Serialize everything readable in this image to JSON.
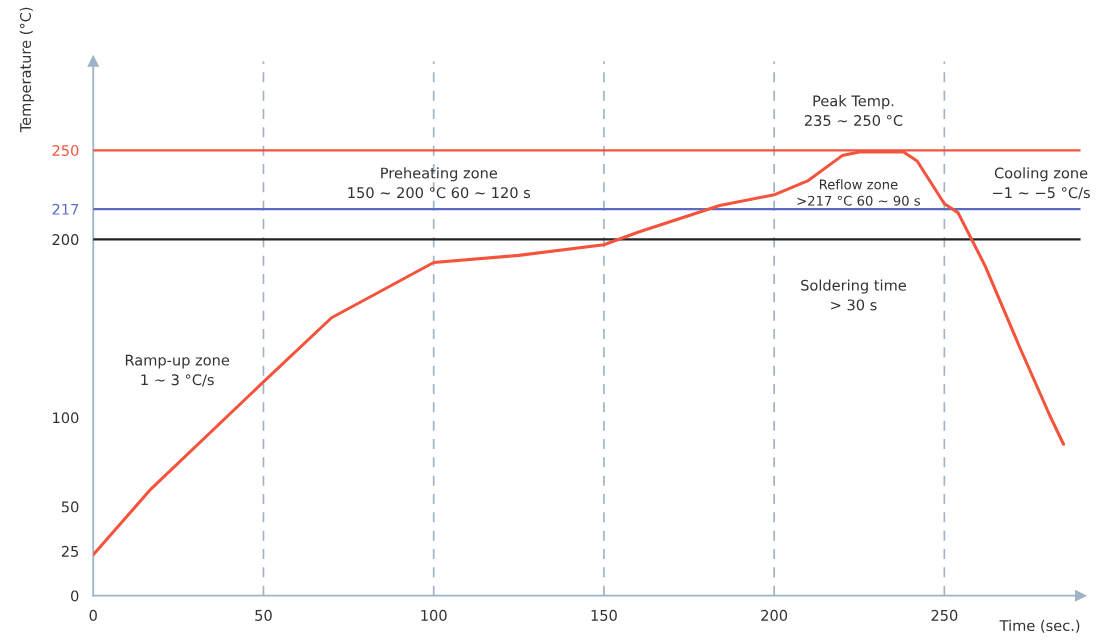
{
  "chart_data": {
    "type": "line",
    "xlabel": "Time (sec.)",
    "ylabel": "Temperature (°C)",
    "series": [
      {
        "color": "#f4533c",
        "x": [
          0,
          17,
          50,
          70,
          100,
          125,
          150,
          160,
          184,
          200,
          210,
          220,
          225,
          238,
          242,
          250,
          254,
          262,
          272,
          281,
          285
        ],
        "values": [
          23,
          60,
          120,
          156,
          187,
          191,
          197,
          204,
          219,
          225,
          233,
          247,
          249,
          249,
          244,
          220,
          215,
          185,
          140,
          101,
          85
        ]
      }
    ],
    "xlim": [
      0,
      290
    ],
    "ylim": [
      0,
      300
    ],
    "xticks": [
      0,
      50,
      100,
      150,
      200,
      250
    ],
    "yticks": [
      0,
      25,
      50,
      100,
      200,
      217,
      250
    ],
    "ref_lines": [
      {
        "axis": "y",
        "value": 250,
        "color": "#f4533c",
        "line_style": "solid"
      },
      {
        "axis": "y",
        "value": 217,
        "color": "#5b6bc4",
        "line_style": "solid"
      },
      {
        "axis": "y",
        "value": 200,
        "color": "#222222",
        "line_style": "solid"
      },
      {
        "axis": "x",
        "value": 50,
        "color": "#9fb3c6",
        "line_style": "dashed"
      },
      {
        "axis": "x",
        "value": 100,
        "color": "#9fb3c6",
        "line_style": "dashed"
      },
      {
        "axis": "x",
        "value": 150,
        "color": "#9fb3c6",
        "line_style": "dashed"
      },
      {
        "axis": "x",
        "value": 200,
        "color": "#9fb3c6",
        "line_style": "dashed"
      },
      {
        "axis": "x",
        "value": 250,
        "color": "#9fb3c6",
        "line_style": "dashed"
      }
    ],
    "annotations": [
      "Ramp-up zone\n1 ~ 3 °C/s",
      "Preheating zone\n150 ~ 200 °C 60 ~ 120 s",
      "Peak Temp.\n235 ~ 250 °C",
      "Reflow zone\n>217 °C 60 ~ 90 s",
      "Cooling zone\n−1 ~ −5 °C/s",
      "Soldering time\n> 30 s"
    ],
    "grid": false,
    "legend": false,
    "marker": "none",
    "line_style": "solid"
  }
}
